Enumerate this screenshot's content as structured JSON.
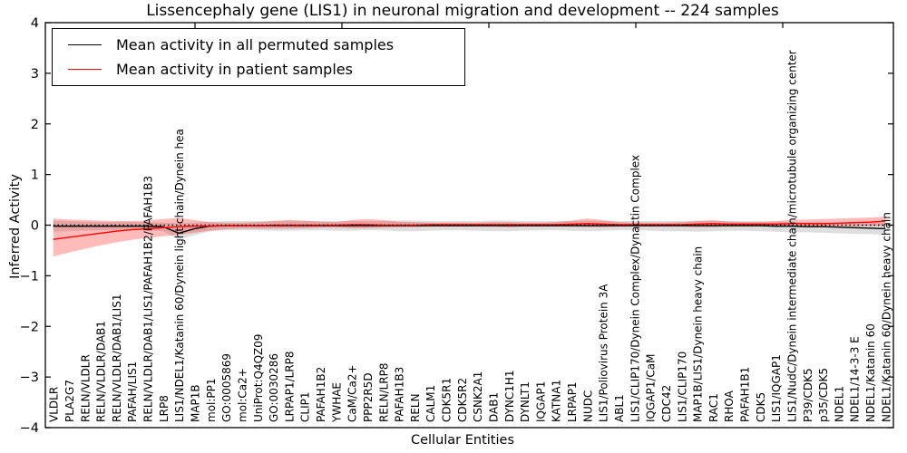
{
  "title": "Lissencephaly gene (LIS1) in neuronal migration and development -- 224 samples",
  "legend": {
    "items": [
      {
        "label": "Mean activity in all permuted samples",
        "color": "#000000"
      },
      {
        "label": "Mean activity in patient samples",
        "color": "#ff0000"
      }
    ]
  },
  "chart_data": {
    "type": "line",
    "title": "Lissencephaly gene (LIS1) in neuronal migration and development -- 224 samples",
    "xlabel": "Cellular Entities",
    "ylabel": "Inferred Activity",
    "ylim": [
      -4,
      4
    ],
    "yticks": [
      4,
      3,
      2,
      1,
      0,
      -1,
      -2,
      -3,
      -4
    ],
    "grid": false,
    "legend_position": "upper left",
    "zero_line": {
      "style": "dotted",
      "color": "#000000",
      "y": 0
    },
    "categories": [
      "VLDLR",
      "PLA2G7",
      "RELN/VLDLR",
      "RELN/VLDLR/DAB1",
      "RELN/VLDLR/DAB1/LIS1",
      "PAFAH/LIS1",
      "RELN/VLDLR/DAB1/LIS1/PAFAH1B2/PAFAH1B3",
      "LRP8",
      "LIS1/NDEL1/Katanin 60/Dynein light chain/Dynein hea",
      "MAP1B",
      "mol:PP1",
      "GO:0005869",
      "mol:Ca2+",
      "UniProt:Q4QZ09",
      "GO:0030286",
      "LRPAP1/LRP8",
      "CLIP1",
      "PAFAH1B2",
      "YWHAE",
      "CaM/Ca2+",
      "PPP2R5D",
      "RELN/LRP8",
      "PAFAH1B3",
      "RELN",
      "CALM1",
      "CDK5R1",
      "CDK5R2",
      "CSNK2A1",
      "DAB1",
      "DYNC1H1",
      "DYNLT1",
      "IQGAP1",
      "KATNA1",
      "LRPAP1",
      "NUDC",
      "LIS1/Poliovirus Protein 3A",
      "ABL1",
      "LIS1/CLIP170/Dynein Complex/Dynactin Complex",
      "IQGAP1/CaM",
      "CDC42",
      "LIS1/CLIP170",
      "MAP1B/LIS1/Dynein heavy chain",
      "RAC1",
      "RHOA",
      "PAFAH1B1",
      "CDK5",
      "LIS1/IQGAP1",
      "LIS1/NudC/Dynein intermediate chain/microtubule organizing center",
      "P39/CDK5",
      "p35/CDK5",
      "NDEL1",
      "NDEL1/14-3-3 E",
      "NDEL1/Katanin 60",
      "NDEL1/Katanin 60/Dynein heavy chain"
    ],
    "series": [
      {
        "name": "Mean activity in all permuted samples",
        "color": "#000000",
        "band_color": "#000000",
        "band_opacity": 0.13,
        "values": [
          -0.02,
          -0.02,
          -0.02,
          -0.02,
          -0.02,
          -0.02,
          -0.02,
          -0.03,
          -0.16,
          -0.07,
          -0.02,
          -0.01,
          -0.01,
          -0.01,
          -0.01,
          -0.01,
          -0.01,
          -0.01,
          -0.01,
          -0.01,
          -0.01,
          -0.01,
          -0.01,
          -0.01,
          -0.01,
          -0.01,
          -0.01,
          -0.01,
          -0.01,
          -0.01,
          -0.01,
          -0.01,
          -0.01,
          -0.01,
          -0.01,
          -0.01,
          -0.01,
          -0.01,
          -0.01,
          -0.01,
          -0.01,
          -0.01,
          -0.01,
          -0.01,
          -0.01,
          -0.01,
          -0.02,
          -0.02,
          -0.03,
          -0.03,
          -0.04,
          -0.05,
          -0.06,
          -0.07
        ],
        "band_upper": [
          0.09,
          0.08,
          0.07,
          0.06,
          0.06,
          0.06,
          0.06,
          0.05,
          0.04,
          0.05,
          0.07,
          0.08,
          0.08,
          0.08,
          0.08,
          0.09,
          0.08,
          0.08,
          0.08,
          0.08,
          0.08,
          0.08,
          0.09,
          0.09,
          0.08,
          0.08,
          0.08,
          0.08,
          0.09,
          0.09,
          0.08,
          0.08,
          0.08,
          0.08,
          0.09,
          0.08,
          0.08,
          0.08,
          0.08,
          0.08,
          0.08,
          0.09,
          0.08,
          0.08,
          0.08,
          0.08,
          0.07,
          0.07,
          0.06,
          0.06,
          0.05,
          0.05,
          0.05,
          0.05
        ],
        "band_lower": [
          -0.13,
          -0.12,
          -0.11,
          -0.1,
          -0.1,
          -0.1,
          -0.1,
          -0.12,
          -0.28,
          -0.2,
          -0.12,
          -0.1,
          -0.1,
          -0.1,
          -0.11,
          -0.11,
          -0.1,
          -0.1,
          -0.11,
          -0.11,
          -0.1,
          -0.1,
          -0.12,
          -0.12,
          -0.11,
          -0.1,
          -0.1,
          -0.11,
          -0.12,
          -0.12,
          -0.11,
          -0.1,
          -0.1,
          -0.11,
          -0.12,
          -0.11,
          -0.1,
          -0.1,
          -0.11,
          -0.12,
          -0.12,
          -0.13,
          -0.12,
          -0.11,
          -0.11,
          -0.12,
          -0.13,
          -0.14,
          -0.14,
          -0.15,
          -0.16,
          -0.17,
          -0.18,
          -0.19
        ]
      },
      {
        "name": "Mean activity in patient samples",
        "color": "#ff0000",
        "band_color": "#ff0000",
        "band_opacity": 0.27,
        "values": [
          -0.28,
          -0.24,
          -0.2,
          -0.16,
          -0.12,
          -0.09,
          -0.07,
          -0.05,
          -0.03,
          -0.02,
          -0.02,
          -0.01,
          -0.01,
          -0.01,
          0.0,
          0.0,
          0.0,
          0.0,
          0.0,
          0.01,
          0.01,
          0.0,
          0.0,
          0.0,
          0.01,
          0.01,
          0.01,
          0.01,
          0.01,
          0.01,
          0.01,
          0.01,
          0.01,
          0.02,
          0.03,
          0.02,
          0.01,
          0.01,
          0.01,
          0.01,
          0.01,
          0.02,
          0.03,
          0.02,
          0.02,
          0.02,
          0.02,
          0.03,
          0.03,
          0.03,
          0.04,
          0.05,
          0.06,
          0.08
        ],
        "band_upper": [
          0.13,
          0.11,
          0.1,
          0.09,
          0.08,
          0.08,
          0.09,
          0.12,
          0.14,
          0.1,
          0.06,
          0.05,
          0.05,
          0.06,
          0.08,
          0.1,
          0.09,
          0.07,
          0.06,
          0.1,
          0.12,
          0.1,
          0.07,
          0.06,
          0.05,
          0.05,
          0.05,
          0.05,
          0.06,
          0.06,
          0.05,
          0.05,
          0.06,
          0.09,
          0.13,
          0.1,
          0.06,
          0.05,
          0.05,
          0.05,
          0.06,
          0.08,
          0.1,
          0.07,
          0.06,
          0.06,
          0.08,
          0.1,
          0.11,
          0.12,
          0.13,
          0.14,
          0.15,
          0.17
        ],
        "band_lower": [
          -0.62,
          -0.54,
          -0.47,
          -0.4,
          -0.34,
          -0.29,
          -0.25,
          -0.22,
          -0.19,
          -0.15,
          -0.11,
          -0.08,
          -0.07,
          -0.07,
          -0.07,
          -0.07,
          -0.06,
          -0.05,
          -0.05,
          -0.06,
          -0.06,
          -0.05,
          -0.04,
          -0.04,
          -0.03,
          -0.03,
          -0.03,
          -0.03,
          -0.03,
          -0.04,
          -0.03,
          -0.03,
          -0.03,
          -0.03,
          -0.04,
          -0.04,
          -0.03,
          -0.03,
          -0.03,
          -0.03,
          -0.03,
          -0.04,
          -0.04,
          -0.03,
          -0.03,
          -0.03,
          -0.03,
          -0.02,
          -0.02,
          -0.02,
          -0.02,
          -0.02,
          -0.02,
          -0.01
        ]
      }
    ]
  }
}
